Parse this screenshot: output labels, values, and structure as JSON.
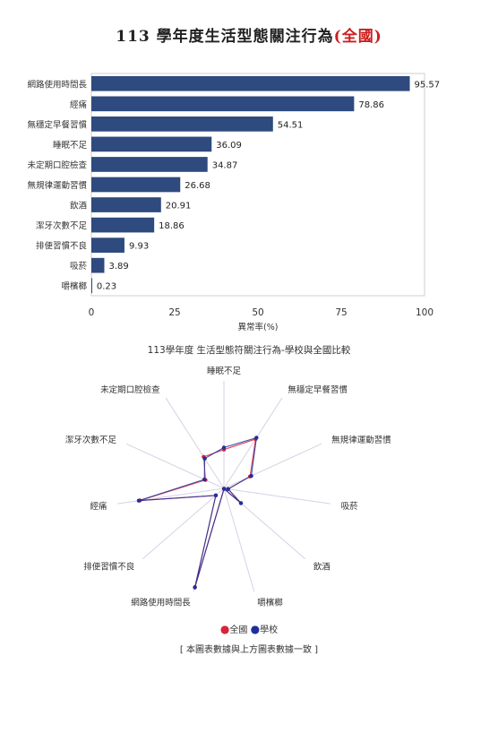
{
  "page": {
    "title_main": "113 學年度生活型態關注行為",
    "title_suffix": "(全國)"
  },
  "chart_data": [
    {
      "type": "bar",
      "orientation": "horizontal",
      "categories": [
        "網路使用時間長",
        "經痛",
        "無穩定早餐習慣",
        "睡眠不足",
        "未定期口腔檢查",
        "無規律運動習慣",
        "飲酒",
        "潔牙次數不足",
        "排便習慣不良",
        "吸菸",
        "嚼檳榔"
      ],
      "values": [
        95.57,
        78.86,
        54.51,
        36.09,
        34.87,
        26.68,
        20.91,
        18.86,
        9.93,
        3.89,
        0.23
      ],
      "xlabel": "異常率(%)",
      "xlim": [
        0,
        100
      ],
      "xticks": [
        0,
        25,
        50,
        75,
        100
      ],
      "bar_color": "#2e4a7f",
      "grid": false
    },
    {
      "type": "radar",
      "title": "113學年度 生活型態符關注行為-學校與全國比較",
      "axes": [
        "睡眠不足",
        "無穩定早餐習慣",
        "無規律運動習慣",
        "吸菸",
        "飲酒",
        "嚼檳榔",
        "網路使用時間長",
        "排便習慣不良",
        "經痛",
        "潔牙次數不足",
        "未定期口腔檢查"
      ],
      "series": [
        {
          "name": "全國",
          "color": "#d6243a",
          "values": [
            36.09,
            54.51,
            26.68,
            3.89,
            20.91,
            0.23,
            95.57,
            9.93,
            78.86,
            18.86,
            34.87
          ]
        },
        {
          "name": "學校",
          "color": "#1f2f9a",
          "values": [
            38,
            56,
            28,
            4,
            21,
            0.5,
            96,
            10,
            80,
            20,
            33
          ]
        }
      ],
      "legend_position": "bottom"
    }
  ],
  "footnote": "[ 本圖表數據與上方圖表數據一致 ]"
}
